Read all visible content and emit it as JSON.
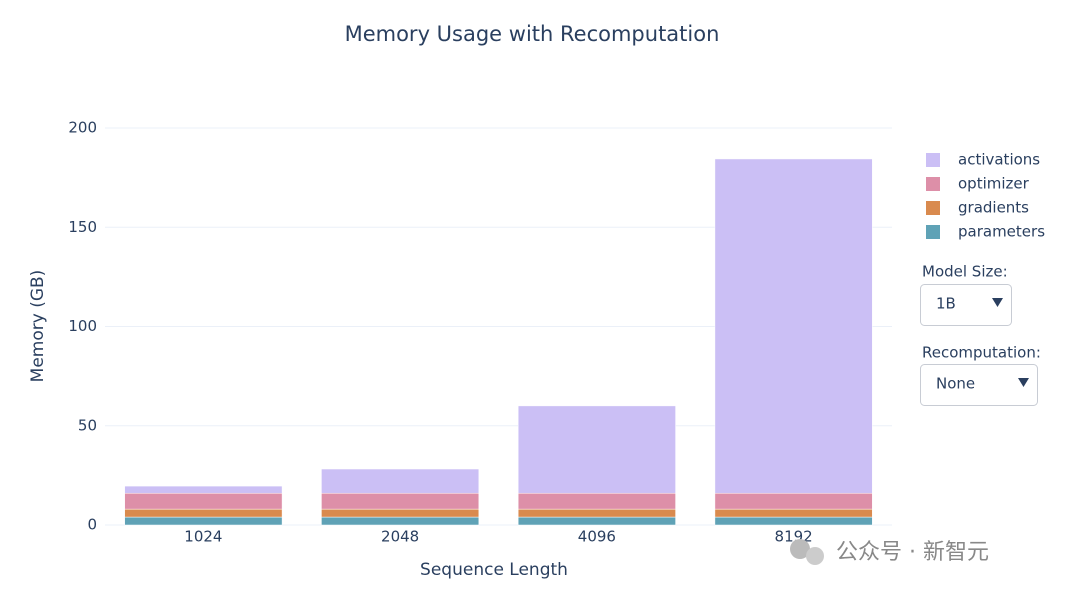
{
  "chart_data": {
    "type": "stacked-bar",
    "title": "Memory Usage with Recomputation",
    "x_label": "Sequence Length",
    "y_label": "Memory (GB)",
    "categories": [
      "1024",
      "2048",
      "4096",
      "8192"
    ],
    "series": [
      {
        "name": "parameters",
        "color": "#5fa2b6",
        "values": [
          4,
          4,
          4,
          4
        ]
      },
      {
        "name": "gradients",
        "color": "#d98a4e",
        "values": [
          4,
          4,
          4,
          4
        ]
      },
      {
        "name": "optimizer",
        "color": "#dd8fa8",
        "values": [
          8,
          8,
          8,
          8
        ]
      },
      {
        "name": "activations",
        "color": "#cbbff5",
        "values": [
          3.6,
          12.2,
          44,
          168.4
        ]
      }
    ],
    "ylim": [
      0,
      200
    ],
    "yticks": [
      0,
      50,
      100,
      150,
      200
    ],
    "grid": true,
    "controls": [
      {
        "label": "Model Size:",
        "selected": "1B"
      },
      {
        "label": "Recomputation:",
        "selected": "None"
      }
    ],
    "watermark": "公众号 · 新智元"
  }
}
